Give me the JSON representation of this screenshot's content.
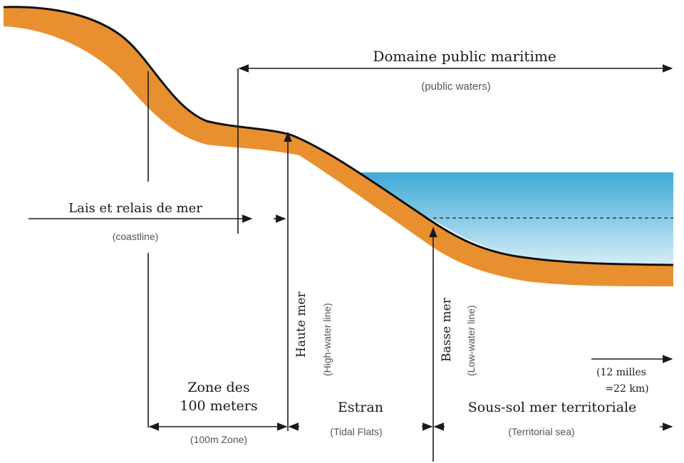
{
  "colors": {
    "land": "#e8902f",
    "land_edge": "#111111",
    "water_top": "#3ea9d6",
    "water_bottom": "#d6edf7",
    "text_main": "#1a1a1a",
    "text_sub": "#555555"
  },
  "labels": {
    "domaine_public": "Domaine public maritime",
    "domaine_public_sub": "(public waters)",
    "lais_relais": "Lais et relais de mer",
    "lais_relais_sub": "(coastline)",
    "haute_mer": "Haute mer",
    "haute_mer_sub": "(High-water line)",
    "basse_mer": "Basse mer",
    "basse_mer_sub": "(Low-water line)",
    "zone_100_line1": "Zone des",
    "zone_100_line2": "100 meters",
    "zone_100_sub": "(100m Zone)",
    "estran": "Estran",
    "estran_sub": "(Tidal Flats)",
    "sous_sol": "Sous-sol mer territoriale",
    "sous_sol_sub": "(Territorial sea)",
    "twelve_miles_line1": "(12 milles",
    "twelve_miles_line2": "=22 km)"
  },
  "icons": {
    "arrow": "arrowhead-icon"
  }
}
